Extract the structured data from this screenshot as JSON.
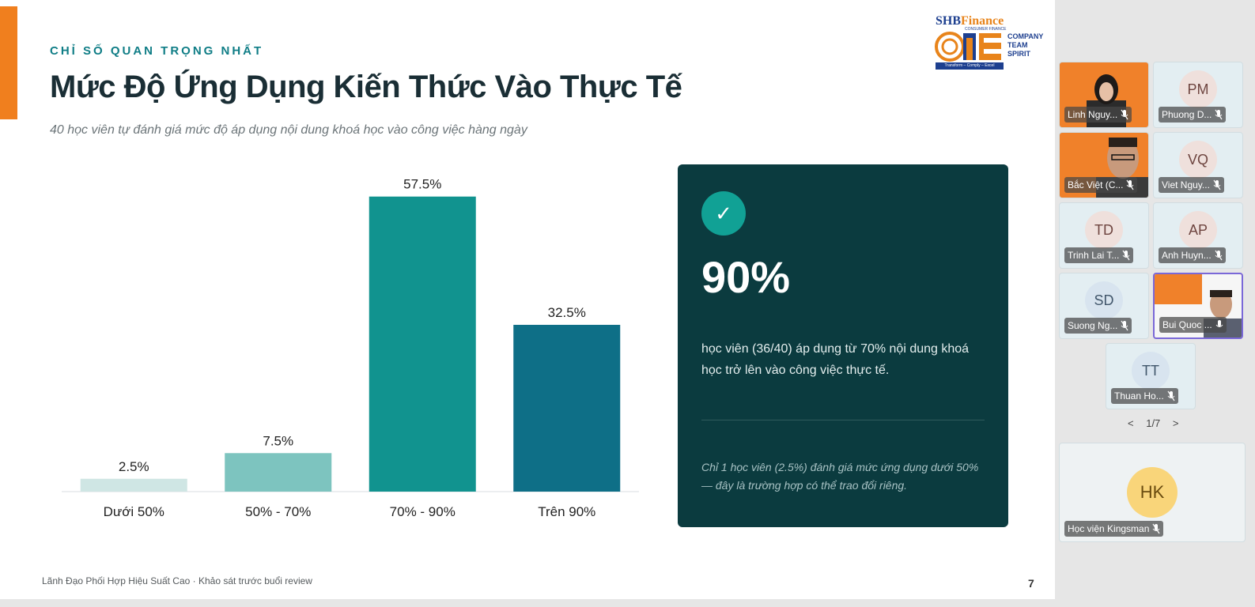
{
  "slide": {
    "kicker": "CHỈ SỐ QUAN TRỌNG NHẤT",
    "title": "Mức Độ Ứng Dụng Kiến Thức Vào Thực Tế",
    "subtitle": "40 học viên tự đánh giá mức độ áp dụng nội dung khoá học vào công việc hàng ngày",
    "footer": "Lãnh Đạo Phối Hợp Hiệu Suất Cao  ·  Khảo sát trước buổi review",
    "page_number": "7",
    "logo": {
      "brand_a": "SHB",
      "brand_b": "Finance",
      "sub": "CONSUMER FINANCE",
      "word": "ONE",
      "team_lines": [
        "COMPANY",
        "TEAM",
        "SPIRIT"
      ],
      "tagline": "Transform – Comply – Excel"
    }
  },
  "chart_data": {
    "type": "bar",
    "categories": [
      "Dưới 50%",
      "50% - 70%",
      "70% - 90%",
      "Trên 90%"
    ],
    "values": [
      2.5,
      7.5,
      57.5,
      32.5
    ],
    "value_labels": [
      "2.5%",
      "7.5%",
      "57.5%",
      "32.5%"
    ],
    "colors": [
      "#cfe6e4",
      "#7dc4bf",
      "#11938f",
      "#0e6f87"
    ],
    "ylim": [
      0,
      65
    ],
    "grid": false,
    "title": "",
    "xlabel": "",
    "ylabel": ""
  },
  "highlight": {
    "icon": "check-icon",
    "icon_glyph": "✓",
    "stat": "90%",
    "description": "học viên (36/40) áp dụng từ 70% nội dung khoá học trở lên vào công việc thực tế.",
    "note": "Chỉ 1 học viên (2.5%) đánh giá mức ứng dụng dưới 50% — đây là trường hợp có thể trao đổi riêng."
  },
  "participants": [
    {
      "name": "Linh Nguy...",
      "initials": "",
      "video": true
    },
    {
      "name": "Phuong D...",
      "initials": "PM",
      "video": false
    },
    {
      "name": "Bắc Việt (C...",
      "initials": "",
      "video": true
    },
    {
      "name": "Viet Nguy...",
      "initials": "VQ",
      "video": false
    },
    {
      "name": "Trinh Lai T...",
      "initials": "TD",
      "video": false
    },
    {
      "name": "Anh Huyn...",
      "initials": "AP",
      "video": false
    },
    {
      "name": "Suong Ng...",
      "initials": "SD",
      "video": false
    },
    {
      "name": "Bui Quoc ...",
      "initials": "",
      "video": true
    },
    {
      "name": "Thuan Ho...",
      "initials": "TT",
      "video": false
    }
  ],
  "pager": {
    "prev": "<",
    "label": "1/7",
    "next": ">"
  },
  "featured": {
    "name": "Học viện Kingsman",
    "initials": "HK"
  }
}
